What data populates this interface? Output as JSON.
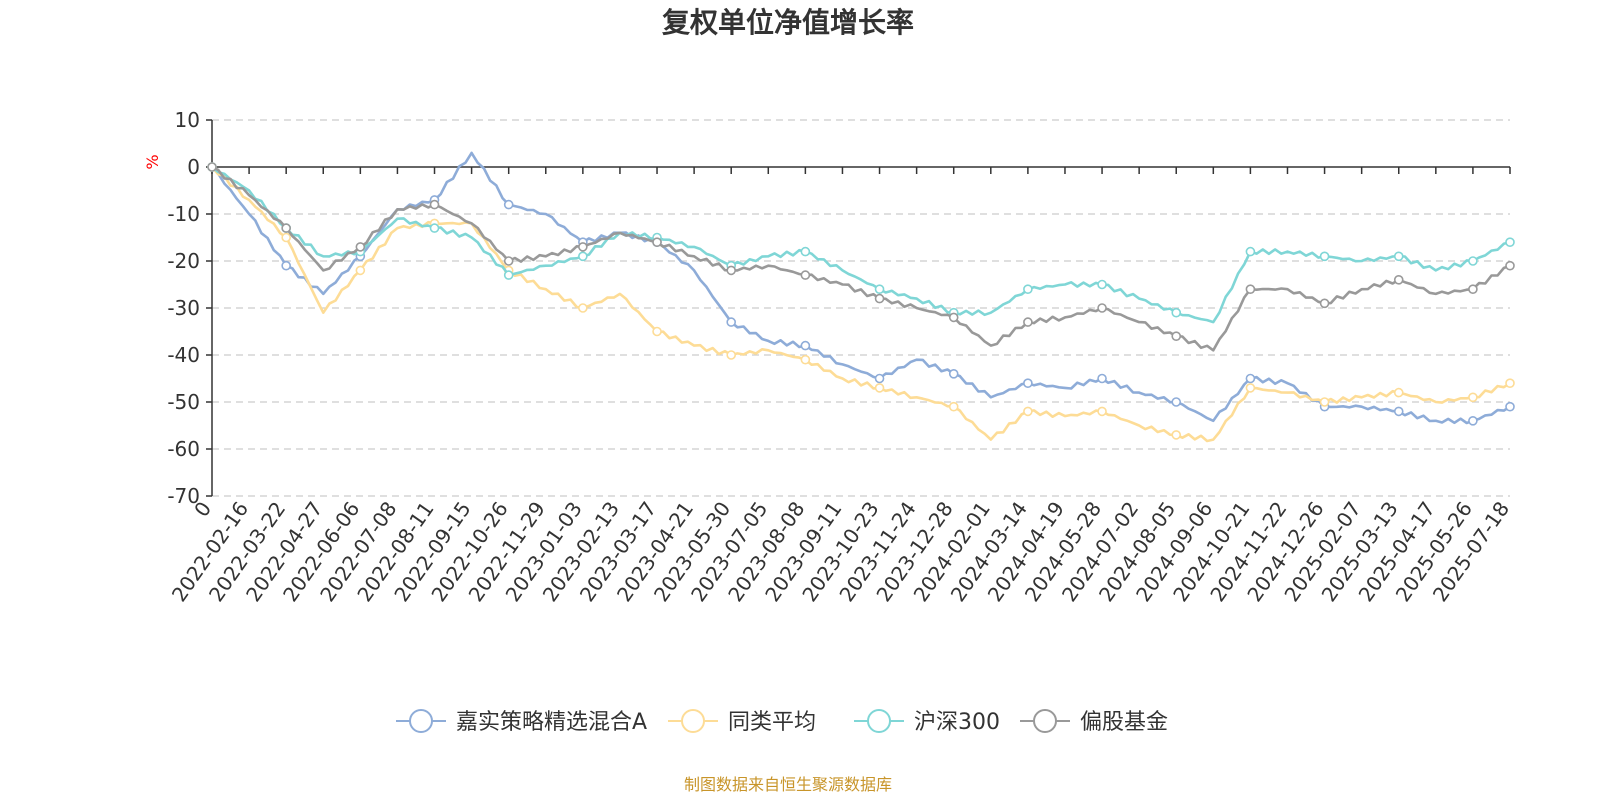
{
  "chart_data": {
    "type": "line",
    "title": "复权单位净值增长率",
    "ylabel": "%",
    "ylim": [
      -70,
      10
    ],
    "yticks": [
      10,
      0,
      -10,
      -20,
      -30,
      -40,
      -50,
      -60,
      -70
    ],
    "grid": true,
    "legend_position": "bottom-center",
    "x_start_label": "0",
    "x_ticks": [
      "2022-02-16",
      "2022-03-22",
      "2022-04-27",
      "2022-06-06",
      "2022-07-08",
      "2022-08-11",
      "2022-09-15",
      "2022-10-26",
      "2022-11-29",
      "2023-01-03",
      "2023-02-13",
      "2023-03-17",
      "2023-04-21",
      "2023-05-30",
      "2023-07-05",
      "2023-08-08",
      "2023-09-11",
      "2023-10-23",
      "2023-11-24",
      "2023-12-28",
      "2024-02-01",
      "2024-03-14",
      "2024-04-19",
      "2024-05-28",
      "2024-07-02",
      "2024-08-05",
      "2024-09-06",
      "2024-10-21",
      "2024-11-22",
      "2024-12-26",
      "2025-02-07",
      "2025-03-13",
      "2025-04-17",
      "2025-05-26",
      "2025-07-18"
    ],
    "x": [
      "0",
      "2022-02-16",
      "2022-03-22",
      "2022-04-27",
      "2022-06-06",
      "2022-07-08",
      "2022-08-11",
      "2022-09-15",
      "2022-10-26",
      "2022-11-29",
      "2023-01-03",
      "2023-02-13",
      "2023-03-17",
      "2023-04-21",
      "2023-05-30",
      "2023-07-05",
      "2023-08-08",
      "2023-09-11",
      "2023-10-23",
      "2023-11-24",
      "2023-12-28",
      "2024-02-01",
      "2024-03-14",
      "2024-04-19",
      "2024-05-28",
      "2024-07-02",
      "2024-08-05",
      "2024-09-06",
      "2024-10-21",
      "2024-11-22",
      "2024-12-26",
      "2025-02-07",
      "2025-03-13",
      "2025-04-17",
      "2025-05-26",
      "2025-07-18"
    ],
    "series": [
      {
        "name": "嘉实策略精选混合A",
        "color": "#8eacd8",
        "values": [
          0,
          -10,
          -21,
          -27,
          -19,
          -9,
          -7,
          3,
          -8,
          -10,
          -16,
          -14,
          -16,
          -22,
          -33,
          -37,
          -38,
          -42,
          -45,
          -41,
          -44,
          -49,
          -46,
          -47,
          -45,
          -48,
          -50,
          -54,
          -45,
          -46,
          -51,
          -51,
          -52,
          -54,
          -54,
          -51
        ]
      },
      {
        "name": "同类平均",
        "color": "#fddc96",
        "values": [
          0,
          -7,
          -15,
          -31,
          -22,
          -13,
          -12,
          -12,
          -22,
          -26,
          -30,
          -27,
          -35,
          -38,
          -40,
          -39,
          -41,
          -45,
          -47,
          -49,
          -51,
          -58,
          -52,
          -53,
          -52,
          -55,
          -57,
          -58,
          -47,
          -48,
          -50,
          -49,
          -48,
          -50,
          -49,
          -46
        ]
      },
      {
        "name": "沪深300",
        "color": "#7fd6d6",
        "values": [
          0,
          -5,
          -13,
          -19,
          -18,
          -11,
          -13,
          -15,
          -23,
          -21,
          -19,
          -14,
          -15,
          -17,
          -21,
          -19,
          -18,
          -22,
          -26,
          -28,
          -31,
          -31,
          -26,
          -25,
          -25,
          -28,
          -31,
          -33,
          -18,
          -18,
          -19,
          -20,
          -19,
          -22,
          -20,
          -16
        ]
      },
      {
        "name": "偏股基金",
        "color": "#999999",
        "values": [
          0,
          -6,
          -13,
          -22,
          -17,
          -9,
          -8,
          -12,
          -20,
          -19,
          -17,
          -14,
          -16,
          -19,
          -22,
          -21,
          -23,
          -25,
          -28,
          -30,
          -32,
          -38,
          -33,
          -32,
          -30,
          -33,
          -36,
          -39,
          -26,
          -26,
          -29,
          -26,
          -24,
          -27,
          -26,
          -21
        ]
      }
    ]
  },
  "source_text": "制图数据来自恒生聚源数据库"
}
